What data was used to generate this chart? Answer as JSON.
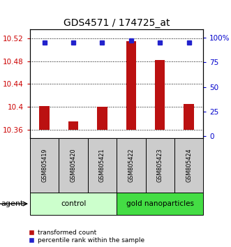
{
  "title": "GDS4571 / 174725_at",
  "samples": [
    "GSM805419",
    "GSM805420",
    "GSM805421",
    "GSM805422",
    "GSM805423",
    "GSM805424"
  ],
  "bar_values": [
    10.401,
    10.374,
    10.4,
    10.515,
    10.482,
    10.405
  ],
  "bar_baseline": 10.36,
  "percentile_values": [
    95,
    95,
    95,
    97,
    95,
    95
  ],
  "ylim_left": [
    10.345,
    10.535
  ],
  "ylim_right": [
    -2,
    108
  ],
  "yticks_left": [
    10.36,
    10.4,
    10.44,
    10.48,
    10.52
  ],
  "yticks_right": [
    0,
    25,
    50,
    75,
    100
  ],
  "ytick_labels_left": [
    "10.36",
    "10.4",
    "10.44",
    "10.48",
    "10.52"
  ],
  "ytick_labels_right": [
    "0",
    "25",
    "50",
    "75",
    "100%"
  ],
  "bar_color": "#bb1111",
  "percentile_color": "#2222cc",
  "left_tick_color": "#cc0000",
  "right_tick_color": "#0000cc",
  "group_labels": [
    "control",
    "gold nanoparticles"
  ],
  "group_ranges": [
    [
      0,
      3
    ],
    [
      3,
      6
    ]
  ],
  "group_color_control": "#ccffcc",
  "group_color_gold": "#44dd44",
  "agent_label": "agent",
  "legend_bar_label": "transformed count",
  "legend_pct_label": "percentile rank within the sample",
  "bar_width": 0.35,
  "title_fontsize": 10
}
